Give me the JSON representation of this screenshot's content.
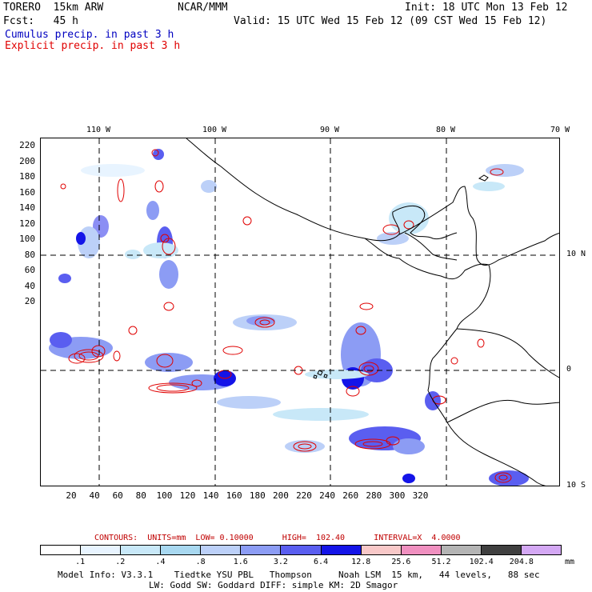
{
  "header": {
    "model": "TORERO  15km ARW",
    "org": "NCAR/MMM",
    "init": "Init: 18 UTC Mon 13 Feb 12",
    "fcst": "Fcst:   45 h",
    "valid": "Valid: 15 UTC Wed 15 Feb 12 (09 CST Wed 15 Feb 12)",
    "cumulus": "Cumulus precip. in past 3 h",
    "explicit": "Explicit precip. in past 3 h"
  },
  "colors": {
    "cumulus_text": "#0000c0",
    "explicit_text": "#e00000",
    "contour": "#e00000",
    "coast": "#000000"
  },
  "axes": {
    "x_ticks": [
      "20",
      "40",
      "60",
      "80",
      "100",
      "120",
      "140",
      "160",
      "180",
      "200",
      "220",
      "240",
      "260",
      "280",
      "300",
      "320"
    ],
    "y_ticks": [
      "220",
      "200",
      "180",
      "160",
      "140",
      "120",
      "100",
      "80",
      "60",
      "40",
      "20"
    ],
    "lon_labels": [
      "110 W",
      "100 W",
      "90 W",
      "80 W",
      "70 W"
    ],
    "lat_labels": [
      "10 N",
      "0",
      "10 S"
    ]
  },
  "legend": {
    "contours": "CONTOURS:  UNITS=mm  LOW= 0.10000      HIGH=  102.40      INTERVAL=X  4.0000",
    "levels": [
      ".1",
      ".2",
      ".4",
      ".8",
      "1.6",
      "3.2",
      "6.4",
      "12.8",
      "25.6",
      "51.2",
      "102.4",
      "204.8"
    ],
    "unit": "mm",
    "swatches": [
      "#ffffff",
      "#e8f4ff",
      "#c8e8f8",
      "#a8d8f0",
      "#bcd0f8",
      "#8c9cf4",
      "#5a5ef0",
      "#1414e8",
      "#f8c8c8",
      "#f090c0",
      "#b4b4b4",
      "#404040",
      "#d4a8f4"
    ]
  },
  "footer": {
    "line1": "Model Info: V3.3.1    Tiedtke YSU PBL   Thompson     Noah LSM  15 km,   44 levels,   88 sec",
    "line2": "LW: Godd SW: Goddard DIFF: simple KM: 2D Smagor"
  }
}
